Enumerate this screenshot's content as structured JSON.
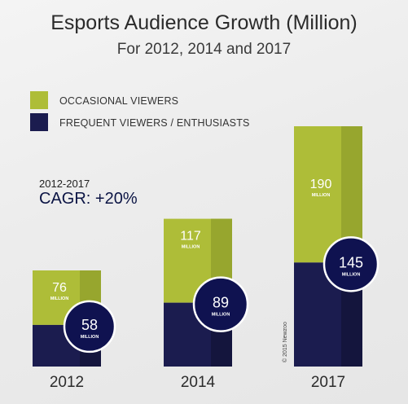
{
  "title": "Esports Audience Growth (Million)",
  "subtitle": "For 2012, 2014 and 2017",
  "legend": [
    {
      "label": "OCCASIONAL VIEWERS",
      "color": "#aebd38"
    },
    {
      "label": "FREQUENT VIEWERS / ENTHUSIASTS",
      "color": "#1b1c4f"
    }
  ],
  "cagr": {
    "period": "2012-2017",
    "label": "CAGR: +20%"
  },
  "watermark": "© 2015 Newzoo",
  "colors": {
    "occasional": "#aebd38",
    "occasional_shade": "#97a62e",
    "frequent": "#1b1c4f",
    "frequent_shade": "#14153d",
    "circle": "#0f1250"
  },
  "chart_data": {
    "type": "bar",
    "stacked": true,
    "categories": [
      "2012",
      "2014",
      "2017"
    ],
    "series": [
      {
        "name": "FREQUENT VIEWERS / ENTHUSIASTS",
        "values": [
          58,
          89,
          145
        ],
        "color": "#1b1c4f"
      },
      {
        "name": "OCCASIONAL VIEWERS",
        "values": [
          76,
          117,
          190
        ],
        "color": "#aebd38"
      }
    ],
    "unit_label": "MILLION",
    "title": "Esports Audience Growth (Million)",
    "subtitle": "For 2012, 2014 and 2017"
  }
}
